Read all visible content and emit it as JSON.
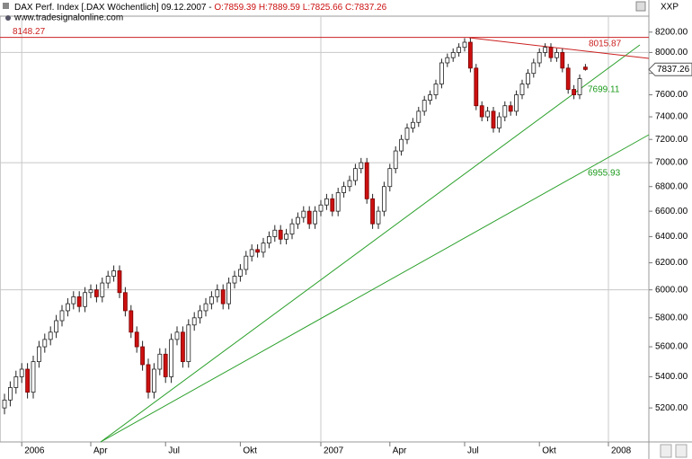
{
  "chart_data": {
    "type": "candlestick",
    "header": {
      "title": "DAX Perf. Index [.DAX Wöchentlich] 09.12.2007 - ",
      "ohlc": "O:7859.39 H:7889.59 L:7825.66 C:7837.26",
      "source": "www.tradesignalonline.com",
      "symbol": "XXP"
    },
    "categories": [
      null,
      null,
      null,
      "2006",
      null,
      null,
      null,
      null,
      null,
      null,
      null,
      null,
      null,
      null,
      null,
      "Apr",
      null,
      null,
      null,
      null,
      null,
      null,
      null,
      null,
      null,
      null,
      null,
      null,
      "Jul",
      null,
      null,
      null,
      null,
      null,
      null,
      null,
      null,
      null,
      null,
      null,
      null,
      "Okt",
      null,
      null,
      null,
      null,
      null,
      null,
      null,
      null,
      null,
      null,
      null,
      null,
      null,
      "2007",
      null,
      null,
      null,
      null,
      null,
      null,
      null,
      null,
      null,
      null,
      null,
      "Apr",
      null,
      null,
      null,
      null,
      null,
      null,
      null,
      null,
      null,
      null,
      null,
      null,
      "Jul",
      null,
      null,
      null,
      null,
      null,
      null,
      null,
      null,
      null,
      null,
      null,
      null,
      "Okt",
      null,
      null,
      null,
      null,
      null,
      null,
      null,
      null,
      null,
      null,
      null,
      "2008"
    ],
    "open": [
      5200,
      5250,
      5330,
      5400,
      5450,
      5300,
      5500,
      5600,
      5650,
      5700,
      5780,
      5850,
      5900,
      5950,
      5880,
      5980,
      6000,
      5950,
      6050,
      6100,
      6140,
      5980,
      5850,
      5700,
      5600,
      5480,
      5300,
      5450,
      5550,
      5400,
      5650,
      5700,
      5500,
      5750,
      5800,
      5850,
      5900,
      5950,
      6000,
      5900,
      6050,
      6100,
      6150,
      6250,
      6300,
      6280,
      6350,
      6400,
      6450,
      6380,
      6420,
      6500,
      6550,
      6600,
      6500,
      6600,
      6650,
      6700,
      6600,
      6750,
      6800,
      6850,
      6950,
      7000,
      6700,
      6500,
      6600,
      6800,
      6950,
      7100,
      7200,
      7300,
      7350,
      7450,
      7550,
      7600,
      7700,
      7900,
      7950,
      8000,
      8050,
      8100,
      7850,
      7500,
      7400,
      7450,
      7300,
      7400,
      7500,
      7450,
      7600,
      7700,
      7800,
      7900,
      8000,
      8050,
      7950,
      8000,
      7850,
      7650,
      7600,
      7859.39,
      null,
      null,
      null,
      null
    ],
    "high": [
      5290,
      5370,
      5440,
      5490,
      5490,
      5540,
      5640,
      5690,
      5740,
      5820,
      5890,
      5940,
      5990,
      5990,
      6020,
      6040,
      6040,
      6090,
      6140,
      6180,
      6180,
      6020,
      5890,
      5740,
      5640,
      5520,
      5490,
      5590,
      5590,
      5690,
      5740,
      5740,
      5790,
      5840,
      5890,
      5940,
      5990,
      6040,
      6040,
      6090,
      6140,
      6190,
      6290,
      6340,
      6340,
      6390,
      6440,
      6490,
      6490,
      6460,
      6540,
      6590,
      6640,
      6640,
      6640,
      6690,
      6740,
      6740,
      6790,
      6840,
      6890,
      6990,
      7040,
      7040,
      6740,
      6640,
      6840,
      6990,
      7140,
      7240,
      7340,
      7390,
      7490,
      7590,
      7640,
      7740,
      7940,
      7990,
      8040,
      8090,
      8140,
      8140,
      7890,
      7540,
      7490,
      7490,
      7440,
      7540,
      7540,
      7640,
      7740,
      7840,
      7940,
      8040,
      8090,
      8090,
      8040,
      8040,
      7890,
      7690,
      7790,
      7889.59,
      null,
      null,
      null,
      null
    ],
    "low": [
      5160,
      5210,
      5290,
      5360,
      5260,
      5260,
      5460,
      5560,
      5610,
      5660,
      5740,
      5810,
      5860,
      5840,
      5840,
      5940,
      5910,
      5910,
      6010,
      6060,
      5940,
      5810,
      5660,
      5560,
      5440,
      5260,
      5260,
      5410,
      5360,
      5360,
      5610,
      5460,
      5460,
      5710,
      5760,
      5810,
      5860,
      5910,
      5860,
      5860,
      6010,
      6060,
      6110,
      6210,
      6240,
      6240,
      6310,
      6360,
      6340,
      6340,
      6380,
      6460,
      6510,
      6460,
      6460,
      6560,
      6610,
      6560,
      6560,
      6710,
      6760,
      6810,
      6910,
      6660,
      6460,
      6460,
      6560,
      6760,
      6910,
      7060,
      7160,
      7260,
      7310,
      7410,
      7510,
      7560,
      7660,
      7860,
      7910,
      7960,
      8010,
      7810,
      7460,
      7360,
      7360,
      7260,
      7260,
      7360,
      7410,
      7410,
      7560,
      7660,
      7760,
      7860,
      7960,
      7910,
      7910,
      7810,
      7610,
      7560,
      7560,
      7825.66,
      null,
      null,
      null,
      null
    ],
    "close": [
      5250,
      5330,
      5400,
      5450,
      5300,
      5500,
      5600,
      5650,
      5700,
      5780,
      5850,
      5900,
      5950,
      5880,
      5980,
      6000,
      5950,
      6050,
      6100,
      6140,
      5980,
      5850,
      5700,
      5600,
      5480,
      5300,
      5450,
      5550,
      5400,
      5650,
      5700,
      5500,
      5750,
      5800,
      5850,
      5900,
      5950,
      6000,
      5900,
      6050,
      6100,
      6150,
      6250,
      6300,
      6280,
      6350,
      6400,
      6450,
      6380,
      6420,
      6500,
      6550,
      6600,
      6500,
      6600,
      6650,
      6700,
      6600,
      6750,
      6800,
      6850,
      6950,
      7000,
      6700,
      6500,
      6600,
      6800,
      6950,
      7100,
      7200,
      7300,
      7350,
      7450,
      7550,
      7600,
      7700,
      7900,
      7950,
      8000,
      8050,
      8100,
      7850,
      7500,
      7400,
      7450,
      7300,
      7400,
      7500,
      7450,
      7600,
      7700,
      7800,
      7900,
      8000,
      8050,
      7950,
      8000,
      7850,
      7650,
      7600,
      7750,
      7837.26,
      null,
      null,
      null,
      null
    ],
    "up_color": "#ffffff",
    "down_color": "#cc1010",
    "ylim": [
      4990,
      8360
    ],
    "log_scale": true,
    "yticks": [
      {
        "value": 5200,
        "label": "5200.00"
      },
      {
        "value": 5400,
        "label": "5400.00"
      },
      {
        "value": 5600,
        "label": "5600.00"
      },
      {
        "value": 5800,
        "label": "5800.00"
      },
      {
        "value": 6000,
        "label": "6000.00"
      },
      {
        "value": 6200,
        "label": "6200.00"
      },
      {
        "value": 6400,
        "label": "6400.00"
      },
      {
        "value": 6600,
        "label": "6600.00"
      },
      {
        "value": 6800,
        "label": "6800.00"
      },
      {
        "value": 7000,
        "label": "7000.00"
      },
      {
        "value": 7200,
        "label": "7200.00"
      },
      {
        "value": 7400,
        "label": "7400.00"
      },
      {
        "value": 7600,
        "label": "7600.00"
      },
      {
        "value": 7800,
        "label": "7800.00"
      },
      {
        "value": 8000,
        "label": "8000.00"
      },
      {
        "value": 8200,
        "label": "8200.00"
      }
    ],
    "grid": true,
    "resistance": {
      "value": 8148.27,
      "color": "#cc2020"
    },
    "trendline_labels": [
      {
        "value": 8015.87,
        "color": "#cc2020"
      },
      {
        "value": 7699.11,
        "color": "#1a9a1a"
      },
      {
        "value": 6955.93,
        "color": "#1a9a1a"
      }
    ]
  }
}
